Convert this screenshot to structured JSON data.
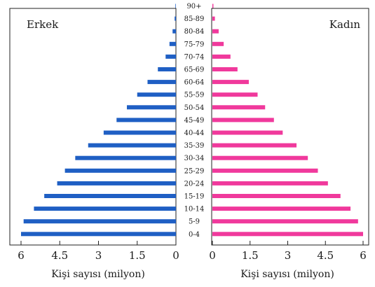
{
  "chart_data": {
    "type": "bar",
    "orientation": "horizontal",
    "layout": "population-pyramid",
    "categories": [
      "90+",
      "85-89",
      "80-84",
      "75-79",
      "70-74",
      "65-69",
      "60-64",
      "55-59",
      "50-54",
      "45-49",
      "40-44",
      "35-39",
      "30-34",
      "25-29",
      "20-24",
      "15-19",
      "10-14",
      "5-9",
      "0-4"
    ],
    "series": [
      {
        "name": "Erkek",
        "color": "#1f5fc4",
        "values": [
          0.02,
          0.05,
          0.13,
          0.25,
          0.4,
          0.7,
          1.1,
          1.5,
          1.9,
          2.3,
          2.8,
          3.4,
          3.9,
          4.3,
          4.6,
          5.1,
          5.5,
          5.9,
          6.0
        ]
      },
      {
        "name": "Kadın",
        "color": "#f0399c",
        "values": [
          0.04,
          0.1,
          0.25,
          0.45,
          0.72,
          1.0,
          1.45,
          1.8,
          2.1,
          2.45,
          2.8,
          3.35,
          3.8,
          4.2,
          4.6,
          5.1,
          5.5,
          5.8,
          6.0
        ]
      }
    ],
    "left_ticks": [
      "6",
      "4.5",
      "3",
      "1.5",
      "0"
    ],
    "right_ticks": [
      "0",
      "1.5",
      "3",
      "4.5",
      "6"
    ],
    "tick_values": [
      0,
      1.5,
      3,
      4.5,
      6
    ],
    "xlabel": "Kişi sayısı (milyon)",
    "xlim": [
      0,
      6
    ]
  }
}
